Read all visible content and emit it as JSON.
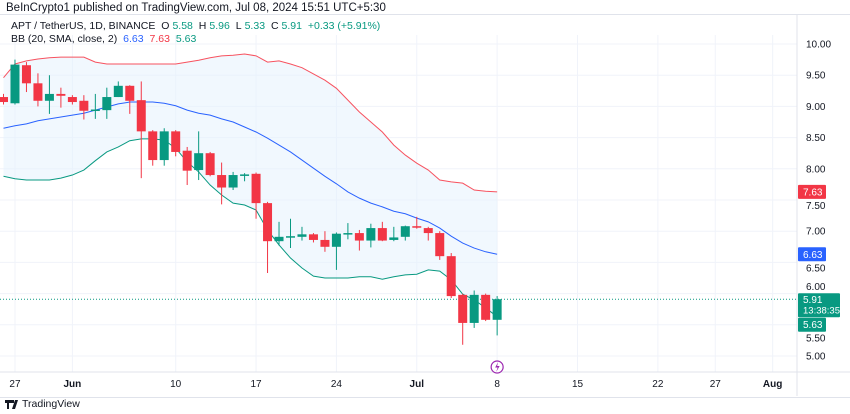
{
  "publisher_line": "BeInCrypto1 published on TradingView.com, Jul 08, 2024 15:51 UTC+5:30",
  "legend": {
    "symbol": "APT / TetherUS, 1D, BINANCE",
    "o_label": "O",
    "o": "5.58",
    "h_label": "H",
    "h": "5.96",
    "l_label": "L",
    "l": "5.33",
    "c_label": "C",
    "c": "5.91",
    "change": "+0.33 (+5.91%)",
    "bb_label": "BB (20, SMA, close, 2)",
    "bb_mid": "6.63",
    "bb_upper": "7.63",
    "bb_lower": "5.63"
  },
  "footer": {
    "brand": "TradingView",
    "logo_icon": "tradingview-logo-icon"
  },
  "colors": {
    "up": "#089981",
    "down": "#f23645",
    "upper": "#f7525f",
    "mid": "#2962ff",
    "lower": "#089981",
    "fill": "#e3f2fd",
    "event": "#9c27b0"
  },
  "chart_data": {
    "type": "candlestick",
    "title": "",
    "xlabel": "",
    "ylabel": "",
    "ylim": [
      4.85,
      10.35
    ],
    "y_ticks": [
      "10.00",
      "9.50",
      "9.00",
      "8.50",
      "8.00",
      "7.50",
      "7.00",
      "6.50",
      "6.00",
      "5.50",
      "5.00"
    ],
    "x_ticks": [
      {
        "label": "27",
        "day": 1
      },
      {
        "label": "Jun",
        "day": 6,
        "bold": true
      },
      {
        "label": "10",
        "day": 15
      },
      {
        "label": "17",
        "day": 22
      },
      {
        "label": "24",
        "day": 29
      },
      {
        "label": "Jul",
        "day": 36,
        "bold": true
      },
      {
        "label": "8",
        "day": 43
      },
      {
        "label": "15",
        "day": 50
      },
      {
        "label": "22",
        "day": 57
      },
      {
        "label": "27",
        "day": 62
      },
      {
        "label": "Aug",
        "day": 67,
        "bold": true
      }
    ],
    "grid": true,
    "ohlc": [
      [
        9.15,
        9.2,
        9.03,
        9.07
      ],
      [
        9.05,
        9.75,
        9.03,
        9.67
      ],
      [
        9.66,
        9.71,
        9.23,
        9.37
      ],
      [
        9.37,
        9.53,
        9.0,
        9.09
      ],
      [
        9.09,
        9.5,
        8.88,
        9.2
      ],
      [
        9.2,
        9.3,
        8.98,
        9.17
      ],
      [
        9.15,
        9.18,
        9.03,
        9.07
      ],
      [
        9.09,
        9.18,
        8.79,
        8.93
      ],
      [
        8.93,
        9.2,
        8.8,
        8.95
      ],
      [
        8.94,
        9.3,
        8.8,
        9.15
      ],
      [
        9.15,
        9.4,
        9.15,
        9.33
      ],
      [
        9.33,
        9.34,
        8.88,
        9.09
      ],
      [
        9.1,
        9.4,
        7.85,
        8.6
      ],
      [
        8.6,
        8.62,
        8.05,
        8.14
      ],
      [
        8.14,
        8.65,
        8.05,
        8.6
      ],
      [
        8.6,
        8.62,
        8.2,
        8.27
      ],
      [
        8.29,
        8.35,
        7.74,
        7.97
      ],
      [
        7.98,
        8.6,
        7.82,
        8.25
      ],
      [
        8.25,
        8.27,
        7.88,
        7.9
      ],
      [
        7.9,
        8.1,
        7.43,
        7.7
      ],
      [
        7.7,
        7.95,
        7.66,
        7.9
      ],
      [
        7.89,
        7.93,
        7.8,
        7.91
      ],
      [
        7.92,
        7.94,
        7.2,
        7.45
      ],
      [
        7.45,
        7.47,
        6.33,
        6.84
      ],
      [
        6.84,
        7.15,
        6.77,
        6.91
      ],
      [
        6.91,
        7.2,
        6.73,
        6.92
      ],
      [
        6.91,
        7.07,
        6.85,
        6.95
      ],
      [
        6.95,
        6.97,
        6.82,
        6.86
      ],
      [
        6.86,
        7.0,
        6.67,
        6.75
      ],
      [
        6.75,
        6.98,
        6.38,
        6.96
      ],
      [
        6.96,
        7.13,
        6.87,
        6.97
      ],
      [
        6.97,
        7.02,
        6.69,
        6.85
      ],
      [
        6.85,
        7.12,
        6.74,
        7.05
      ],
      [
        7.05,
        7.15,
        6.84,
        6.85
      ],
      [
        6.86,
        7.07,
        6.84,
        6.9
      ],
      [
        6.91,
        7.09,
        6.85,
        7.08
      ],
      [
        7.08,
        7.23,
        7.04,
        7.06
      ],
      [
        7.05,
        7.07,
        6.85,
        6.97
      ],
      [
        6.97,
        7.0,
        6.54,
        6.6
      ],
      [
        6.6,
        6.65,
        5.93,
        5.96
      ],
      [
        5.98,
        6.0,
        5.18,
        5.53
      ],
      [
        5.53,
        6.05,
        5.45,
        5.98
      ],
      [
        5.98,
        6.0,
        5.56,
        5.58
      ],
      [
        5.58,
        5.96,
        5.33,
        5.91
      ]
    ],
    "bb_upper": [
      9.46,
      9.68,
      9.73,
      9.76,
      9.78,
      9.79,
      9.79,
      9.79,
      9.71,
      9.68,
      9.68,
      9.68,
      9.68,
      9.68,
      9.68,
      9.68,
      9.71,
      9.74,
      9.78,
      9.81,
      9.82,
      9.84,
      9.81,
      9.71,
      9.73,
      9.68,
      9.62,
      9.52,
      9.42,
      9.29,
      9.1,
      8.91,
      8.75,
      8.59,
      8.38,
      8.22,
      8.09,
      7.98,
      7.82,
      7.79,
      7.77,
      7.66,
      7.64,
      7.63
    ],
    "bb_mid": [
      8.65,
      8.69,
      8.72,
      8.77,
      8.8,
      8.83,
      8.86,
      8.89,
      8.94,
      8.99,
      9.04,
      9.07,
      9.07,
      9.07,
      9.05,
      9.01,
      8.94,
      8.89,
      8.86,
      8.8,
      8.75,
      8.67,
      8.59,
      8.49,
      8.38,
      8.27,
      8.14,
      8.01,
      7.88,
      7.76,
      7.63,
      7.53,
      7.45,
      7.39,
      7.32,
      7.28,
      7.21,
      7.15,
      7.05,
      6.92,
      6.81,
      6.73,
      6.67,
      6.63
    ],
    "bb_lower": [
      7.88,
      7.84,
      7.82,
      7.82,
      7.82,
      7.85,
      7.9,
      7.98,
      8.13,
      8.27,
      8.35,
      8.45,
      8.48,
      8.48,
      8.46,
      8.33,
      8.11,
      7.95,
      7.74,
      7.58,
      7.45,
      7.42,
      7.34,
      7.02,
      6.78,
      6.57,
      6.41,
      6.28,
      6.25,
      6.25,
      6.25,
      6.27,
      6.27,
      6.23,
      6.27,
      6.3,
      6.31,
      6.38,
      6.36,
      6.22,
      5.99,
      5.9,
      5.77,
      5.63
    ],
    "price_labels": {
      "upper": "7.63",
      "mid": "6.63",
      "last": "5.91",
      "countdown": "13:38:35",
      "lower": "5.63"
    }
  }
}
